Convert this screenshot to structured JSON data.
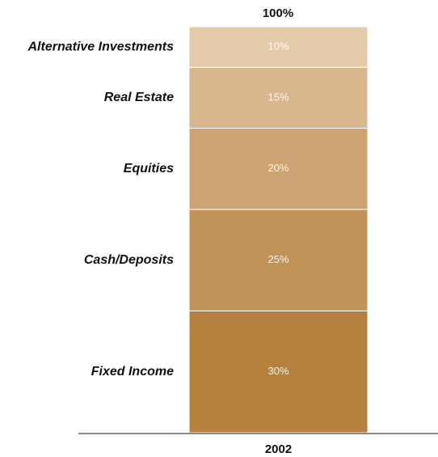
{
  "chart_data": {
    "type": "bar",
    "stacked": true,
    "total_label": "100%",
    "categories": [
      "2002"
    ],
    "ylim": [
      0,
      100
    ],
    "series": [
      {
        "name": "Fixed Income",
        "color": "#b5813f",
        "values": [
          30
        ],
        "value_labels": [
          "30%"
        ]
      },
      {
        "name": "Cash/Deposits",
        "color": "#c29358",
        "values": [
          25
        ],
        "value_labels": [
          "25%"
        ]
      },
      {
        "name": "Equities",
        "color": "#cda373",
        "values": [
          20
        ],
        "value_labels": [
          "20%"
        ]
      },
      {
        "name": "Real Estate",
        "color": "#d9b78e",
        "values": [
          15
        ],
        "value_labels": [
          "15%"
        ]
      },
      {
        "name": "Alternative Investments",
        "color": "#e3cba9",
        "values": [
          10
        ],
        "value_labels": [
          "10%"
        ]
      }
    ]
  }
}
